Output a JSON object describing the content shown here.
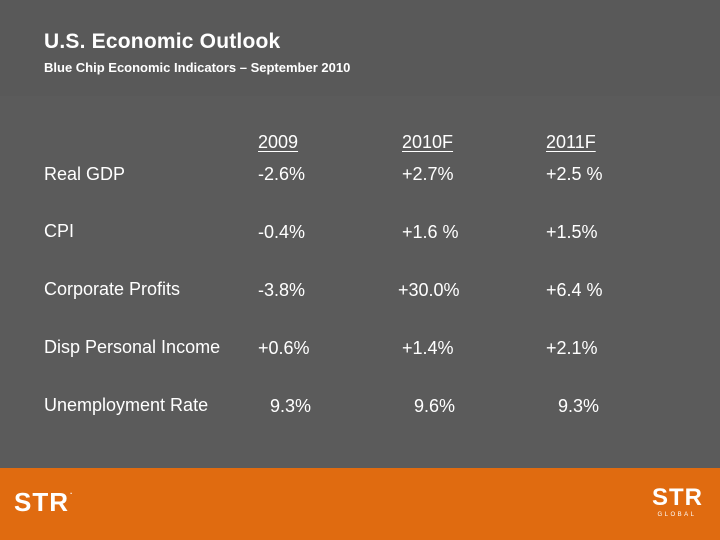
{
  "slide": {
    "title": "U.S. Economic Outlook",
    "subtitle": "Blue Chip Economic Indicators – September 2010"
  },
  "table": {
    "headers": [
      "2009",
      "2010F",
      "2011F"
    ],
    "rows": [
      {
        "label": "Real GDP",
        "values": [
          "-2.6%",
          "+2.7%",
          "+2.5 %"
        ]
      },
      {
        "label": "CPI",
        "values": [
          "-0.4%",
          "+1.6 %",
          "+1.5%"
        ]
      },
      {
        "label": "Corporate Profits",
        "values": [
          "-3.8%",
          "+30.0%",
          "+6.4 %"
        ]
      },
      {
        "label": "Disp Personal Income",
        "values": [
          "+0.6%",
          "+1.4%",
          "+2.1%"
        ]
      },
      {
        "label": "Unemployment Rate",
        "values": [
          "9.3%",
          "9.6%",
          "9.3%"
        ]
      }
    ]
  },
  "footer": {
    "logo_left": "STR",
    "logo_left_mark": ".",
    "logo_right": "STR",
    "logo_right_sub": "GLOBAL"
  },
  "colors": {
    "background": "#5b5b5b",
    "footer": "#e06b10",
    "text": "#ffffff"
  }
}
